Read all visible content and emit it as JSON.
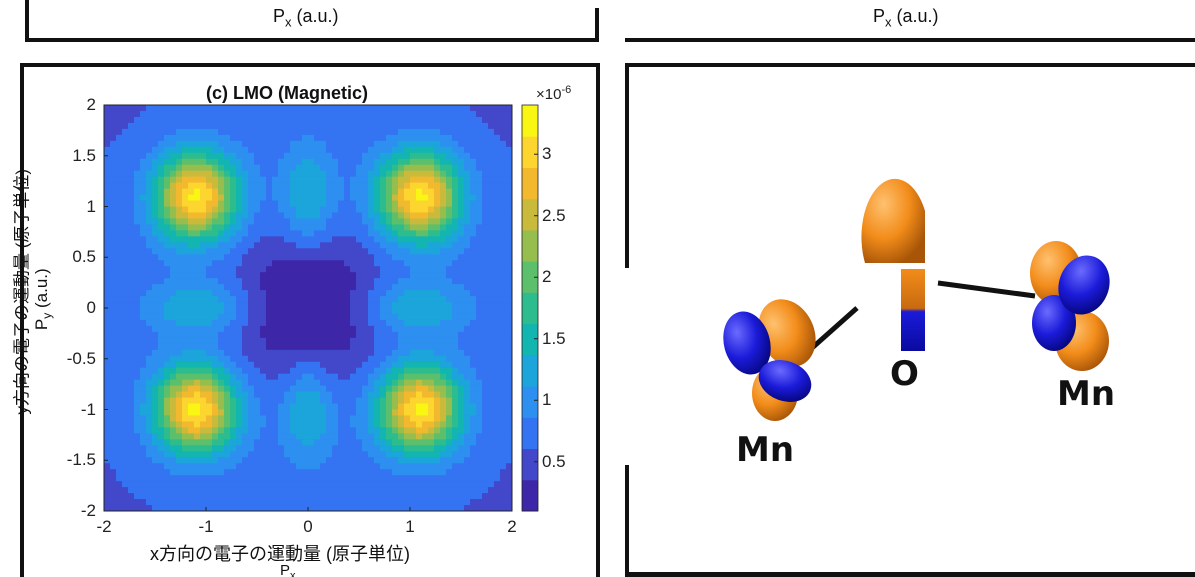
{
  "top_left_panel": {
    "xlabel": "P",
    "xlabel_sub": "x",
    "xlabel_unit": "(a.u.)"
  },
  "top_right_panel": {
    "xlabel": "P",
    "xlabel_sub": "x",
    "xlabel_unit": "(a.u.)"
  },
  "chart_data": {
    "type": "heatmap",
    "title": "(c) LMO (Magnetic)",
    "xlabel": "x方向の電子の運動量 (原子単位)",
    "ylabel": "y方向の電子の運動量 (原子単位)",
    "ylabel_overlay": {
      "main": "P",
      "sub": "y",
      "unit": "(a.u.)"
    },
    "xlabel_overlay": {
      "main": "P",
      "sub": "x"
    },
    "xlim": [
      -2,
      2
    ],
    "ylim": [
      -2,
      2
    ],
    "xticks": [
      "-2",
      "-1",
      "0",
      "1",
      "2"
    ],
    "yticks": [
      "2",
      "1.5",
      "1",
      "0.5",
      "0",
      "-0.5",
      "-1",
      "-1.5",
      "-2"
    ],
    "colorbar": {
      "multiplier": "×10",
      "exponent": "-6",
      "ticks": [
        "3",
        "2.5",
        "2",
        "1.5",
        "1",
        "0.5"
      ],
      "range": [
        0.1,
        3.4
      ],
      "colormap": [
        "#3e26a8",
        "#4248c9",
        "#3473f2",
        "#2d8ff0",
        "#1ba5da",
        "#12b5b0",
        "#2dbc8e",
        "#5cbf6b",
        "#95be4e",
        "#c9ba3c",
        "#f2b92f",
        "#fcd52e",
        "#f9f614"
      ]
    },
    "peaks": [
      {
        "x": -1.1,
        "y": 1.1,
        "value": 3.4
      },
      {
        "x": 1.1,
        "y": 1.1,
        "value": 3.4
      },
      {
        "x": -1.1,
        "y": -1.0,
        "value": 3.4
      },
      {
        "x": 1.1,
        "y": -1.0,
        "value": 3.4
      }
    ],
    "grid": false
  },
  "molecule": {
    "labels": {
      "mn_left": "Mn",
      "oxygen": "O",
      "mn_right": "Mn"
    },
    "colors": {
      "lobe_orange": "#f28c1a",
      "lobe_blue": "#1b1bd9"
    }
  }
}
